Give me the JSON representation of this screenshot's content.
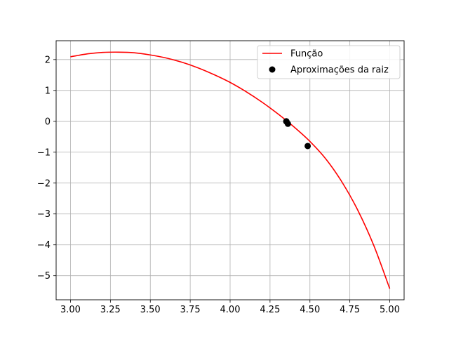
{
  "chart_data": {
    "type": "line",
    "title": "",
    "xlabel": "",
    "ylabel": "",
    "xlim": [
      2.91,
      5.09
    ],
    "ylim": [
      -5.78,
      2.61
    ],
    "xticks": [
      3.0,
      3.25,
      3.5,
      3.75,
      4.0,
      4.25,
      4.5,
      4.75,
      5.0
    ],
    "xtick_labels": [
      "3.00",
      "3.25",
      "3.50",
      "3.75",
      "4.00",
      "4.25",
      "4.50",
      "4.75",
      "5.00"
    ],
    "yticks": [
      2,
      1,
      0,
      -1,
      -2,
      -3,
      -4,
      -5
    ],
    "ytick_labels": [
      "2",
      "1",
      "0",
      "−1",
      "−2",
      "−3",
      "−4",
      "−5"
    ],
    "grid": true,
    "legend_position": "top-right",
    "series": [
      {
        "name": "Função",
        "kind": "line",
        "color": "#ff0000",
        "x": [
          3.0,
          3.1,
          3.2,
          3.3,
          3.4,
          3.5,
          3.6,
          3.7,
          3.8,
          3.9,
          4.0,
          4.1,
          4.2,
          4.3,
          4.4,
          4.5,
          4.6,
          4.7,
          4.8,
          4.9,
          5.0
        ],
        "y": [
          2.09,
          2.18,
          2.23,
          2.24,
          2.22,
          2.15,
          2.05,
          1.91,
          1.73,
          1.51,
          1.26,
          0.96,
          0.62,
          0.24,
          -0.18,
          -0.65,
          -1.22,
          -1.96,
          -2.88,
          -4.02,
          -5.42
        ]
      },
      {
        "name": "Aproximações da raiz",
        "kind": "scatter",
        "color": "#000000",
        "x": [
          4.486,
          4.362,
          4.353,
          4.352
        ],
        "y": [
          -0.8,
          -0.08,
          -0.01,
          0.0
        ]
      }
    ]
  }
}
